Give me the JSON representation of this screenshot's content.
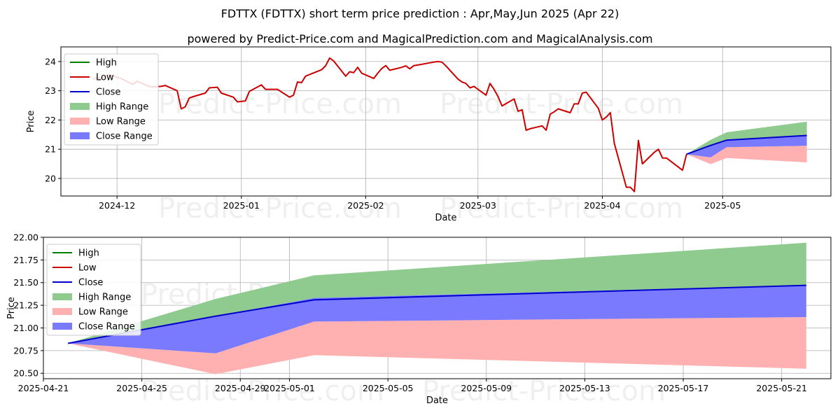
{
  "title": "FDTTX (FDTTX) short term price prediction : Apr,May,Jun 2025 (Apr 22)",
  "subtitle": "powered by Predict-Price.com and MagicalPrediction.com and MagicalAnalysis.com",
  "watermark": "Predict-Price.com",
  "colors": {
    "high": "#008000",
    "low": "#cc0000",
    "close": "#0000cc",
    "high_range": "#8fca8f",
    "low_range": "#ffb0b0",
    "close_range": "#7a7aff"
  },
  "legend": [
    "High",
    "Low",
    "Close",
    "High Range",
    "Low Range",
    "Close Range"
  ],
  "chart_data": [
    {
      "type": "line",
      "xlabel": "Date",
      "ylabel": "Price",
      "xlim": [
        "2024-11-17",
        "2025-05-28"
      ],
      "ylim": [
        19.4,
        24.5
      ],
      "grid": true,
      "legend_position": "top-left",
      "x_ticks": [
        "2024-12",
        "2025-01",
        "2025-02",
        "2025-03",
        "2025-04",
        "2025-05"
      ],
      "y_ticks": [
        "20",
        "21",
        "22",
        "23",
        "24"
      ],
      "history": {
        "name": "Low",
        "dates": [
          "2024-11-25",
          "2024-11-26",
          "2024-11-27",
          "2024-11-29",
          "2024-12-02",
          "2024-12-03",
          "2024-12-04",
          "2024-12-05",
          "2024-12-06",
          "2024-12-09",
          "2024-12-10",
          "2024-12-11",
          "2024-12-12",
          "2024-12-13",
          "2024-12-16",
          "2024-12-17",
          "2024-12-18",
          "2024-12-19",
          "2024-12-20",
          "2024-12-23",
          "2024-12-24",
          "2024-12-26",
          "2024-12-27",
          "2024-12-30",
          "2024-12-31",
          "2025-01-02",
          "2025-01-03",
          "2025-01-06",
          "2025-01-07",
          "2025-01-08",
          "2025-01-10",
          "2025-01-13",
          "2025-01-14",
          "2025-01-15",
          "2025-01-16",
          "2025-01-17",
          "2025-01-21",
          "2025-01-22",
          "2025-01-23",
          "2025-01-24",
          "2025-01-27",
          "2025-01-28",
          "2025-01-29",
          "2025-01-30",
          "2025-01-31",
          "2025-02-03",
          "2025-02-04",
          "2025-02-05",
          "2025-02-06",
          "2025-02-07",
          "2025-02-10",
          "2025-02-11",
          "2025-02-12",
          "2025-02-13",
          "2025-02-14",
          "2025-02-18",
          "2025-02-19",
          "2025-02-20",
          "2025-02-21",
          "2025-02-24",
          "2025-02-25",
          "2025-02-26",
          "2025-02-27",
          "2025-02-28",
          "2025-03-03",
          "2025-03-04",
          "2025-03-05",
          "2025-03-06",
          "2025-03-07",
          "2025-03-10",
          "2025-03-11",
          "2025-03-12",
          "2025-03-13",
          "2025-03-14",
          "2025-03-17",
          "2025-03-18",
          "2025-03-19",
          "2025-03-20",
          "2025-03-21",
          "2025-03-24",
          "2025-03-25",
          "2025-03-26",
          "2025-03-27",
          "2025-03-28",
          "2025-03-31",
          "2025-04-01",
          "2025-04-02",
          "2025-04-03",
          "2025-04-04",
          "2025-04-07",
          "2025-04-08",
          "2025-04-09",
          "2025-04-10",
          "2025-04-11",
          "2025-04-14",
          "2025-04-15",
          "2025-04-16",
          "2025-04-17",
          "2025-04-21",
          "2025-04-22"
        ],
        "values": [
          23.4,
          23.45,
          23.42,
          23.55,
          23.42,
          23.35,
          23.28,
          23.22,
          23.33,
          23.15,
          23.13,
          23.14,
          23.15,
          23.18,
          23.0,
          22.38,
          22.45,
          22.75,
          22.8,
          22.92,
          23.1,
          23.12,
          22.92,
          22.78,
          22.62,
          22.65,
          22.98,
          23.2,
          23.05,
          23.05,
          23.05,
          22.78,
          22.85,
          23.3,
          23.28,
          23.5,
          23.72,
          23.85,
          24.12,
          24.02,
          23.5,
          23.65,
          23.62,
          23.8,
          23.6,
          23.42,
          23.6,
          23.76,
          23.86,
          23.7,
          23.8,
          23.85,
          23.75,
          23.86,
          23.88,
          23.98,
          24.0,
          23.98,
          23.85,
          23.4,
          23.3,
          23.25,
          23.1,
          23.15,
          22.85,
          23.25,
          23.05,
          22.8,
          22.48,
          22.72,
          22.3,
          22.35,
          21.65,
          21.7,
          21.8,
          21.65,
          22.2,
          22.28,
          22.38,
          22.25,
          22.55,
          22.55,
          22.92,
          22.95,
          22.4,
          22.0,
          22.1,
          22.25,
          21.2,
          19.7,
          19.7,
          19.55,
          21.3,
          20.5,
          20.9,
          21.0,
          20.7,
          20.7,
          20.28,
          20.83
        ]
      },
      "forecast": {
        "dates": [
          "2025-04-22",
          "2025-04-28",
          "2025-05-02",
          "2025-05-22"
        ],
        "close": [
          20.83,
          21.13,
          21.31,
          21.47
        ],
        "high_range_upper": [
          20.83,
          21.32,
          21.58,
          21.94
        ],
        "close_range_upper": [
          20.83,
          21.13,
          21.33,
          21.47
        ],
        "close_range_lower": [
          20.83,
          20.72,
          21.07,
          21.12
        ],
        "low_range_lower": [
          20.83,
          20.49,
          20.7,
          20.55
        ]
      }
    },
    {
      "type": "line",
      "xlabel": "Date",
      "ylabel": "Price",
      "xlim": [
        "2025-04-21",
        "2025-05-23"
      ],
      "ylim": [
        20.44,
        22.0
      ],
      "grid": true,
      "legend_position": "top-left",
      "x_ticks": [
        "2025-04-21",
        "2025-04-25",
        "2025-04-29",
        "2025-05-01",
        "2025-05-05",
        "2025-05-09",
        "2025-05-13",
        "2025-05-17",
        "2025-05-21"
      ],
      "y_ticks": [
        "20.50",
        "20.75",
        "21.00",
        "21.25",
        "21.50",
        "21.75",
        "22.00"
      ],
      "forecast": {
        "dates": [
          "2025-04-22",
          "2025-04-28",
          "2025-05-02",
          "2025-05-22"
        ],
        "close": [
          20.83,
          21.13,
          21.31,
          21.47
        ],
        "high_range_upper": [
          20.83,
          21.32,
          21.58,
          21.94
        ],
        "close_range_upper": [
          20.83,
          21.13,
          21.33,
          21.47
        ],
        "close_range_lower": [
          20.83,
          20.72,
          21.07,
          21.12
        ],
        "low_range_lower": [
          20.83,
          20.49,
          20.7,
          20.55
        ]
      }
    }
  ]
}
